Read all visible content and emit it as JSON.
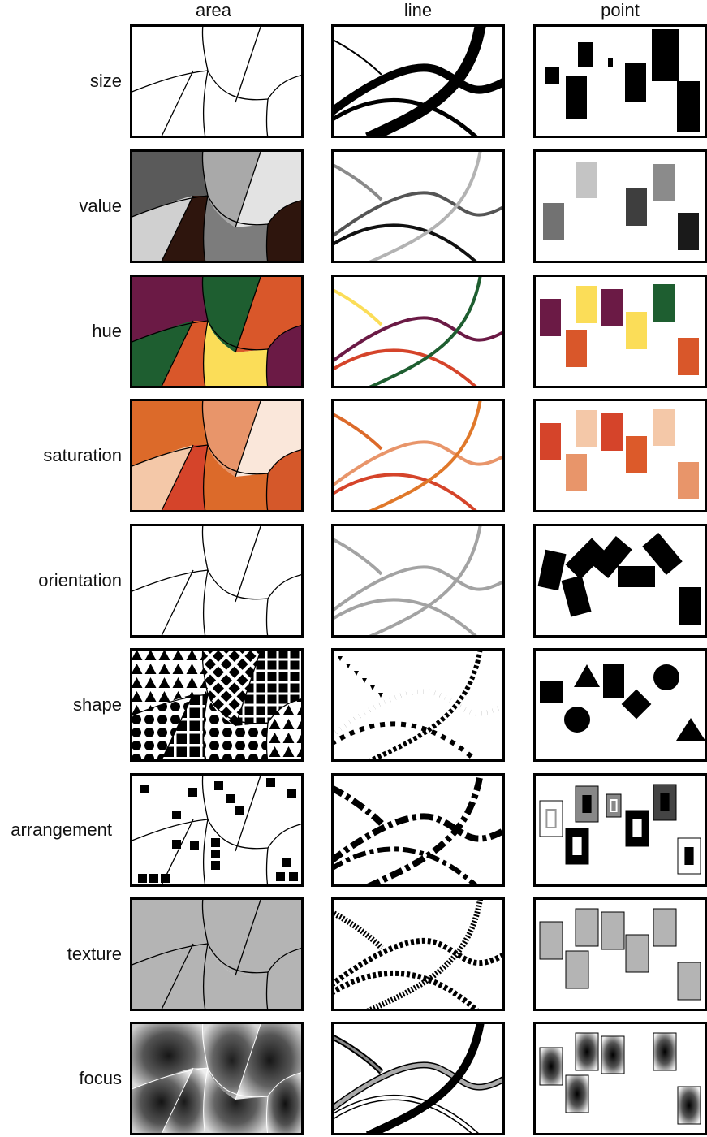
{
  "columns": [
    "area",
    "line",
    "point"
  ],
  "rows": [
    "size",
    "value",
    "hue",
    "saturation",
    "orientation",
    "shape",
    "arrangement",
    "texture",
    "focus"
  ],
  "colors": {
    "hue": [
      "#6b1a45",
      "#1e5e30",
      "#d9572a",
      "#fbdd58"
    ],
    "saturation": [
      "#dc6a2a",
      "#e8956a",
      "#f4c8a8",
      "#fae7da",
      "#d5442a"
    ],
    "value": [
      "#5a5a5a",
      "#a9a9a9",
      "#e3e3e3",
      "#d0d0d0",
      "#2e150d",
      "#7c7c7c",
      "#1c1c1c"
    ]
  }
}
